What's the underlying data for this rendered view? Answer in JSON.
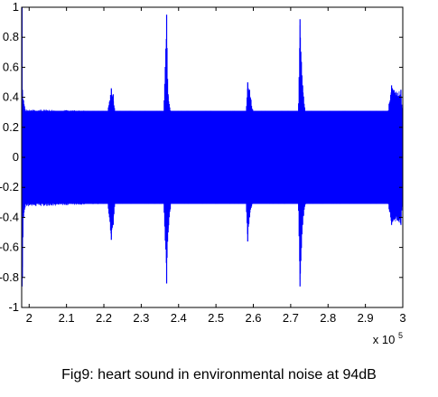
{
  "caption": "Fig9: heart sound in environmental noise at 94dB",
  "chart_data": {
    "type": "line",
    "title": "",
    "xlabel": "",
    "ylabel": "",
    "x_multiplier_label": {
      "base": "x 10",
      "exponent": "5"
    },
    "xlim": [
      1.98,
      3.0
    ],
    "ylim": [
      -1,
      1
    ],
    "x_ticks": [
      2,
      2.1,
      2.2,
      2.3,
      2.4,
      2.5,
      2.6,
      2.7,
      2.8,
      2.9,
      3
    ],
    "x_tick_labels": [
      "2",
      "2.1",
      "2.2",
      "2.3",
      "2.4",
      "2.5",
      "2.6",
      "2.7",
      "2.8",
      "2.9",
      "3"
    ],
    "y_ticks": [
      -1,
      -0.8,
      -0.6,
      -0.4,
      -0.2,
      0,
      0.2,
      0.4,
      0.6,
      0.8,
      1
    ],
    "y_tick_labels": [
      "-1",
      "-0.8",
      "-0.6",
      "-0.4",
      "-0.2",
      "0",
      "0.2",
      "0.4",
      "0.6",
      "0.8",
      "1"
    ],
    "grid": false,
    "legend": false,
    "series": [
      {
        "color": "#0000ff",
        "noise_band": {
          "min": -0.31,
          "max": 0.31
        },
        "envelope": [
          {
            "x": 1.98,
            "min": -0.31,
            "max": 0.31
          },
          {
            "x": 1.981,
            "min": -0.86,
            "max": 1.0
          },
          {
            "x": 1.982,
            "min": -0.8,
            "max": 0.45
          },
          {
            "x": 1.985,
            "min": -0.4,
            "max": 0.38
          },
          {
            "x": 1.99,
            "min": -0.33,
            "max": 0.32
          },
          {
            "x": 2.21,
            "min": -0.31,
            "max": 0.31
          },
          {
            "x": 2.22,
            "min": -0.55,
            "max": 0.46
          },
          {
            "x": 2.225,
            "min": -0.45,
            "max": 0.42
          },
          {
            "x": 2.23,
            "min": -0.31,
            "max": 0.31
          },
          {
            "x": 2.36,
            "min": -0.31,
            "max": 0.31
          },
          {
            "x": 2.368,
            "min": -0.84,
            "max": 0.95
          },
          {
            "x": 2.372,
            "min": -0.5,
            "max": 0.42
          },
          {
            "x": 2.38,
            "min": -0.31,
            "max": 0.31
          },
          {
            "x": 2.58,
            "min": -0.31,
            "max": 0.31
          },
          {
            "x": 2.585,
            "min": -0.56,
            "max": 0.5
          },
          {
            "x": 2.59,
            "min": -0.4,
            "max": 0.45
          },
          {
            "x": 2.6,
            "min": -0.31,
            "max": 0.31
          },
          {
            "x": 2.72,
            "min": -0.31,
            "max": 0.31
          },
          {
            "x": 2.725,
            "min": -0.86,
            "max": 0.92
          },
          {
            "x": 2.732,
            "min": -0.45,
            "max": 0.48
          },
          {
            "x": 2.74,
            "min": -0.31,
            "max": 0.31
          },
          {
            "x": 2.96,
            "min": -0.31,
            "max": 0.31
          },
          {
            "x": 2.97,
            "min": -0.45,
            "max": 0.48
          },
          {
            "x": 2.985,
            "min": -0.42,
            "max": 0.43
          },
          {
            "x": 2.995,
            "min": -0.45,
            "max": 0.45
          },
          {
            "x": 3.0,
            "min": -0.31,
            "max": 0.31
          }
        ]
      }
    ]
  }
}
